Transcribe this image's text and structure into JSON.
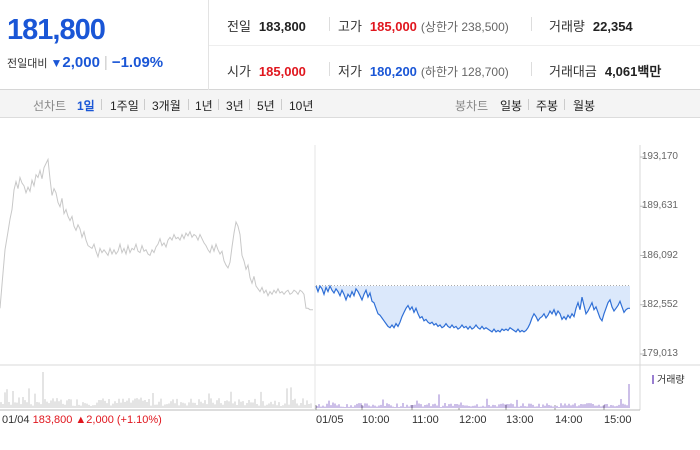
{
  "quote": {
    "current_price": "181,800",
    "change_label": "전일대비",
    "change_arrow": "▼",
    "change_value": "2,000",
    "change_pct": "−1.09%"
  },
  "stats": {
    "prev_close": {
      "label": "전일",
      "value": "183,800"
    },
    "high": {
      "label": "고가",
      "value": "185,000",
      "sub": "(상한가 238,500)"
    },
    "volume": {
      "label": "거래량",
      "value": "22,354"
    },
    "open": {
      "label": "시가",
      "value": "185,000"
    },
    "low": {
      "label": "저가",
      "value": "180,200",
      "sub": "(하한가 128,700)"
    },
    "amount": {
      "label": "거래대금",
      "value": "4,061",
      "unit": "백만"
    }
  },
  "tabs": {
    "line_group": "선차트",
    "line_items": [
      "1일",
      "1주일",
      "3개월",
      "1년",
      "3년",
      "5년",
      "10년"
    ],
    "candle_group": "봉차트",
    "candle_items": [
      "일봉",
      "주봉",
      "월봉"
    ]
  },
  "chart_data": {
    "type": "line",
    "y_ticks": [
      "193,170",
      "189,631",
      "186,092",
      "182,552",
      "179,013"
    ],
    "ylim": [
      179013,
      193170
    ],
    "x_ticks": [
      "01/05",
      "10:00",
      "11:00",
      "12:00",
      "13:00",
      "14:00",
      "15:00"
    ],
    "prev_day_info": {
      "date": "01/04",
      "price": "183,800",
      "change": "▲2,000 (+1.10%)"
    },
    "volume_label": "거래량",
    "colors": {
      "prev_day": "#c8c8c8",
      "today": "#2f6fd6",
      "fill": "#dbe8fb"
    },
    "prev_day_series": [
      [
        0,
        182300
      ],
      [
        2,
        184000
      ],
      [
        5,
        186500
      ],
      [
        8,
        187800
      ],
      [
        10,
        188700
      ],
      [
        12,
        189400
      ],
      [
        14,
        190800
      ],
      [
        16,
        191400
      ],
      [
        18,
        190900
      ],
      [
        20,
        191700
      ],
      [
        22,
        191300
      ],
      [
        24,
        191100
      ],
      [
        26,
        190600
      ],
      [
        28,
        191000
      ],
      [
        30,
        190700
      ],
      [
        32,
        191500
      ],
      [
        34,
        191100
      ],
      [
        36,
        191900
      ],
      [
        38,
        191700
      ],
      [
        40,
        192200
      ],
      [
        42,
        191600
      ],
      [
        44,
        192400
      ],
      [
        46,
        192700
      ],
      [
        48,
        193000
      ],
      [
        50,
        191600
      ],
      [
        52,
        190400
      ],
      [
        54,
        190900
      ],
      [
        56,
        190600
      ],
      [
        58,
        189900
      ],
      [
        60,
        189600
      ],
      [
        62,
        190200
      ],
      [
        64,
        189100
      ],
      [
        66,
        189400
      ],
      [
        68,
        188900
      ],
      [
        70,
        188600
      ],
      [
        72,
        188900
      ],
      [
        74,
        188200
      ],
      [
        76,
        187900
      ],
      [
        78,
        188300
      ],
      [
        80,
        188000
      ],
      [
        82,
        187400
      ],
      [
        84,
        187800
      ],
      [
        86,
        187200
      ],
      [
        88,
        186800
      ],
      [
        90,
        186700
      ],
      [
        92,
        186600
      ],
      [
        94,
        186900
      ],
      [
        96,
        186400
      ],
      [
        98,
        186000
      ],
      [
        100,
        186600
      ],
      [
        102,
        186300
      ],
      [
        104,
        186500
      ],
      [
        106,
        186300
      ],
      [
        108,
        186100
      ],
      [
        110,
        186600
      ],
      [
        112,
        186200
      ],
      [
        114,
        186500
      ],
      [
        116,
        186200
      ],
      [
        118,
        186400
      ],
      [
        120,
        186900
      ],
      [
        122,
        186300
      ],
      [
        124,
        186600
      ],
      [
        126,
        186200
      ],
      [
        128,
        186800
      ],
      [
        130,
        186300
      ],
      [
        132,
        186600
      ],
      [
        134,
        186500
      ],
      [
        136,
        186900
      ],
      [
        138,
        186400
      ],
      [
        140,
        186300
      ],
      [
        142,
        186800
      ],
      [
        144,
        186400
      ],
      [
        146,
        186500
      ],
      [
        148,
        186200
      ],
      [
        150,
        186100
      ],
      [
        152,
        186500
      ],
      [
        154,
        186300
      ],
      [
        156,
        186700
      ],
      [
        158,
        186900
      ],
      [
        160,
        187300
      ],
      [
        162,
        186800
      ],
      [
        164,
        187000
      ],
      [
        166,
        186700
      ],
      [
        168,
        187200
      ],
      [
        170,
        187400
      ],
      [
        172,
        187200
      ],
      [
        174,
        187600
      ],
      [
        176,
        187300
      ],
      [
        178,
        187400
      ],
      [
        180,
        187200
      ],
      [
        182,
        187600
      ],
      [
        184,
        187300
      ],
      [
        186,
        187700
      ],
      [
        188,
        187500
      ],
      [
        190,
        187800
      ],
      [
        192,
        187400
      ],
      [
        194,
        187600
      ],
      [
        196,
        187500
      ],
      [
        198,
        187200
      ],
      [
        200,
        187600
      ],
      [
        202,
        187300
      ],
      [
        204,
        187000
      ],
      [
        206,
        186800
      ],
      [
        208,
        186500
      ],
      [
        210,
        186300
      ],
      [
        212,
        186800
      ],
      [
        214,
        186400
      ],
      [
        216,
        186900
      ],
      [
        218,
        186500
      ],
      [
        220,
        186200
      ],
      [
        222,
        186400
      ],
      [
        224,
        185700
      ],
      [
        226,
        185400
      ],
      [
        228,
        185200
      ],
      [
        230,
        185600
      ],
      [
        232,
        186700
      ],
      [
        234,
        187700
      ],
      [
        236,
        188500
      ],
      [
        238,
        188200
      ],
      [
        240,
        187600
      ],
      [
        242,
        186100
      ],
      [
        244,
        185700
      ],
      [
        246,
        185100
      ],
      [
        248,
        185400
      ],
      [
        250,
        184500
      ],
      [
        252,
        184100
      ],
      [
        254,
        184600
      ],
      [
        256,
        183900
      ],
      [
        258,
        183700
      ],
      [
        260,
        183500
      ],
      [
        262,
        183800
      ],
      [
        264,
        183400
      ],
      [
        266,
        183600
      ],
      [
        268,
        183200
      ],
      [
        270,
        183500
      ],
      [
        272,
        183300
      ],
      [
        274,
        183600
      ],
      [
        276,
        183400
      ],
      [
        278,
        183700
      ],
      [
        280,
        183400
      ],
      [
        282,
        183500
      ],
      [
        284,
        183300
      ],
      [
        286,
        183500
      ],
      [
        288,
        183600
      ],
      [
        290,
        183300
      ],
      [
        292,
        183400
      ],
      [
        294,
        183600
      ],
      [
        296,
        183500
      ],
      [
        298,
        183300
      ],
      [
        300,
        183600
      ],
      [
        302,
        183500
      ],
      [
        304,
        183300
      ],
      [
        306,
        182300
      ],
      [
        308,
        182300
      ],
      [
        310,
        182200
      ],
      [
        313,
        182200
      ]
    ],
    "today_series": [
      [
        316,
        183900
      ],
      [
        318,
        183500
      ],
      [
        320,
        183900
      ],
      [
        322,
        183700
      ],
      [
        324,
        183300
      ],
      [
        326,
        183800
      ],
      [
        328,
        183500
      ],
      [
        330,
        183900
      ],
      [
        332,
        183600
      ],
      [
        334,
        183400
      ],
      [
        336,
        183700
      ],
      [
        338,
        183500
      ],
      [
        340,
        183200
      ],
      [
        342,
        183600
      ],
      [
        344,
        183300
      ],
      [
        346,
        182900
      ],
      [
        348,
        183300
      ],
      [
        350,
        183100
      ],
      [
        352,
        183500
      ],
      [
        354,
        183200
      ],
      [
        356,
        183700
      ],
      [
        358,
        183500
      ],
      [
        360,
        183200
      ],
      [
        362,
        182900
      ],
      [
        364,
        183300
      ],
      [
        366,
        183600
      ],
      [
        368,
        183100
      ],
      [
        370,
        183400
      ],
      [
        372,
        182800
      ],
      [
        374,
        182700
      ],
      [
        376,
        182300
      ],
      [
        378,
        181900
      ],
      [
        380,
        181800
      ],
      [
        382,
        181600
      ],
      [
        384,
        181400
      ],
      [
        386,
        181200
      ],
      [
        388,
        181000
      ],
      [
        390,
        180900
      ],
      [
        392,
        181100
      ],
      [
        394,
        180900
      ],
      [
        396,
        181200
      ],
      [
        398,
        181000
      ],
      [
        400,
        181300
      ],
      [
        402,
        181700
      ],
      [
        404,
        182000
      ],
      [
        406,
        182300
      ],
      [
        408,
        182500
      ],
      [
        410,
        182200
      ],
      [
        412,
        182400
      ],
      [
        414,
        182000
      ],
      [
        416,
        182300
      ],
      [
        418,
        181900
      ],
      [
        420,
        181600
      ],
      [
        422,
        181700
      ],
      [
        424,
        181400
      ],
      [
        426,
        181500
      ],
      [
        428,
        181300
      ],
      [
        430,
        181200
      ],
      [
        432,
        181300
      ],
      [
        434,
        181100
      ],
      [
        436,
        181200
      ],
      [
        438,
        181000
      ],
      [
        440,
        181100
      ],
      [
        442,
        180900
      ],
      [
        444,
        181000
      ],
      [
        446,
        181200
      ],
      [
        448,
        181000
      ],
      [
        450,
        180900
      ],
      [
        452,
        181100
      ],
      [
        454,
        180900
      ],
      [
        456,
        181000
      ],
      [
        458,
        180800
      ],
      [
        460,
        180900
      ],
      [
        462,
        181100
      ],
      [
        464,
        180900
      ],
      [
        466,
        181000
      ],
      [
        468,
        180800
      ],
      [
        470,
        181000
      ],
      [
        472,
        180800
      ],
      [
        474,
        180900
      ],
      [
        476,
        181100
      ],
      [
        478,
        180900
      ],
      [
        480,
        180800
      ],
      [
        482,
        181000
      ],
      [
        484,
        180800
      ],
      [
        486,
        180900
      ],
      [
        488,
        180800
      ],
      [
        490,
        180700
      ],
      [
        492,
        180600
      ],
      [
        494,
        180800
      ],
      [
        496,
        180600
      ],
      [
        498,
        180700
      ],
      [
        500,
        180600
      ],
      [
        502,
        180800
      ],
      [
        504,
        180700
      ],
      [
        506,
        180800
      ],
      [
        508,
        180700
      ],
      [
        510,
        180900
      ],
      [
        512,
        180800
      ],
      [
        514,
        180700
      ],
      [
        516,
        180600
      ],
      [
        518,
        180800
      ],
      [
        520,
        180600
      ],
      [
        522,
        180700
      ],
      [
        524,
        180600
      ],
      [
        526,
        180700
      ],
      [
        528,
        180900
      ],
      [
        530,
        181200
      ],
      [
        532,
        181600
      ],
      [
        534,
        181900
      ],
      [
        536,
        181700
      ],
      [
        538,
        181400
      ],
      [
        540,
        181600
      ],
      [
        542,
        181700
      ],
      [
        544,
        181900
      ],
      [
        546,
        181600
      ],
      [
        548,
        181800
      ],
      [
        550,
        182100
      ],
      [
        552,
        181900
      ],
      [
        554,
        182200
      ],
      [
        556,
        181800
      ],
      [
        558,
        182100
      ],
      [
        560,
        181900
      ],
      [
        562,
        181500
      ],
      [
        564,
        181700
      ],
      [
        566,
        181500
      ],
      [
        568,
        181800
      ],
      [
        570,
        181600
      ],
      [
        572,
        181900
      ],
      [
        574,
        181700
      ],
      [
        576,
        182300
      ],
      [
        578,
        182700
      ],
      [
        580,
        182200
      ],
      [
        582,
        183100
      ],
      [
        584,
        182500
      ],
      [
        586,
        181900
      ],
      [
        588,
        182100
      ],
      [
        590,
        182400
      ],
      [
        592,
        182700
      ],
      [
        594,
        182200
      ],
      [
        596,
        182400
      ],
      [
        598,
        182000
      ],
      [
        600,
        181600
      ],
      [
        602,
        181400
      ],
      [
        604,
        181900
      ],
      [
        606,
        182300
      ],
      [
        608,
        182700
      ],
      [
        610,
        182900
      ],
      [
        612,
        182400
      ],
      [
        614,
        182100
      ],
      [
        616,
        182300
      ],
      [
        618,
        182500
      ],
      [
        620,
        182800
      ],
      [
        622,
        182400
      ],
      [
        624,
        182000
      ],
      [
        626,
        182200
      ],
      [
        628,
        182300
      ],
      [
        630,
        182300
      ]
    ]
  }
}
